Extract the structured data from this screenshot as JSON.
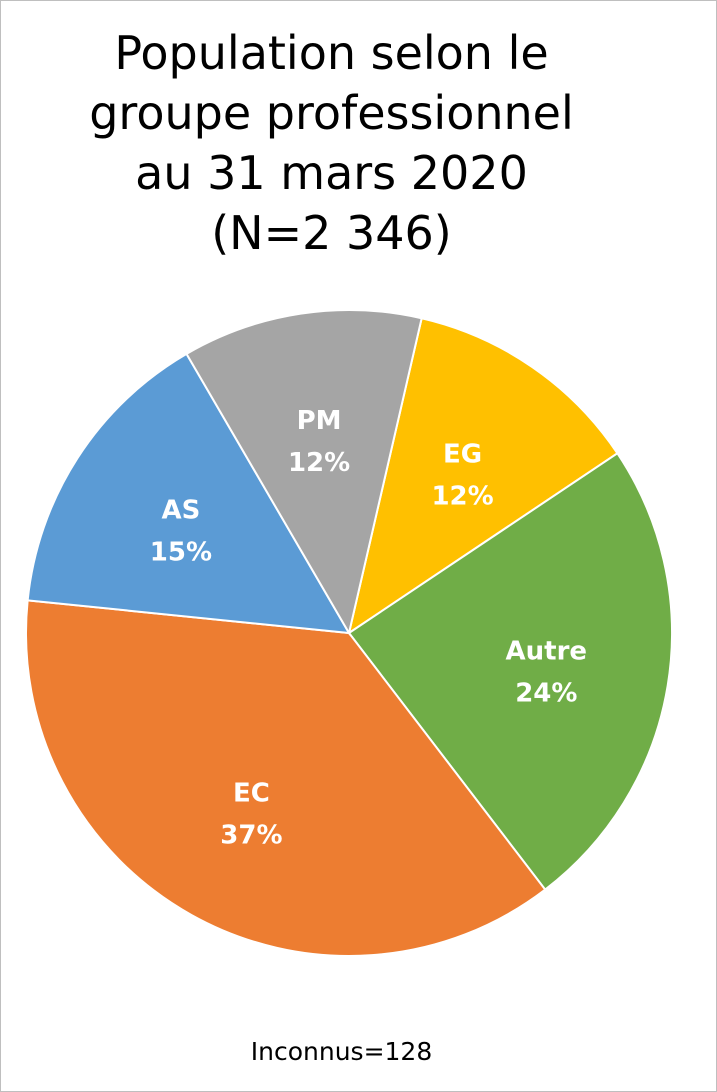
{
  "chart_data": {
    "type": "pie",
    "title_lines": [
      "Population selon le",
      "groupe professionnel",
      "au 31 mars 2020",
      "(N=2 346)"
    ],
    "slices": [
      {
        "name": "EG",
        "percent_label": "12%",
        "value": 12,
        "color": "#ffc000"
      },
      {
        "name": "Autre",
        "percent_label": "24%",
        "value": 24,
        "color": "#70ad47"
      },
      {
        "name": "EC",
        "percent_label": "37%",
        "value": 37,
        "color": "#ed7d31"
      },
      {
        "name": "AS",
        "percent_label": "15%",
        "value": 15,
        "color": "#5b9bd5"
      },
      {
        "name": "PM",
        "percent_label": "12%",
        "value": 12,
        "color": "#a5a5a5"
      }
    ],
    "start_angle_deg": 13,
    "legend": "none",
    "note": "Inconnus=128"
  }
}
